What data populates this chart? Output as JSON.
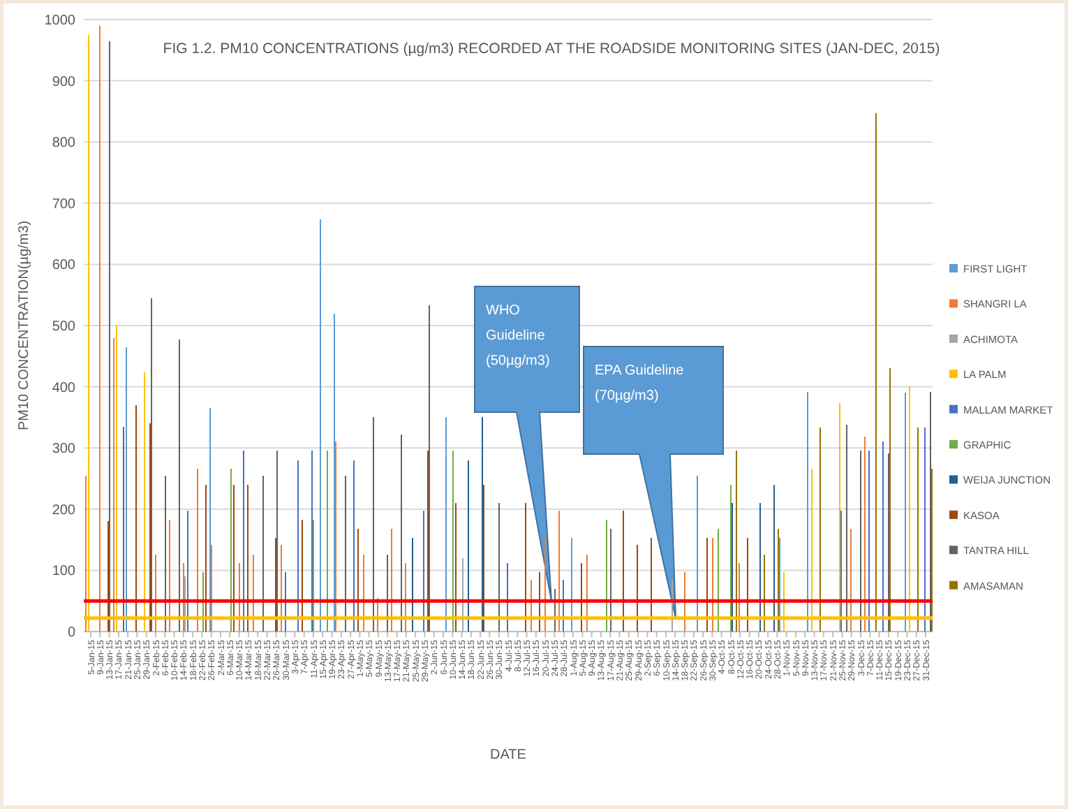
{
  "chart_data": {
    "type": "bar",
    "title": "FIG 1.2. PM10 CONCENTRATIONS  (µg/m3) RECORDED AT THE ROADSIDE MONITORING SITES (JAN-DEC, 2015)",
    "xlabel": "DATE",
    "ylabel": "PM10 CONCENTRATION(µg/m3)",
    "xlim": [
      "2015-01-02",
      "2016-01-03"
    ],
    "ylim": [
      0,
      1000
    ],
    "yticks": [
      0,
      100,
      200,
      300,
      400,
      500,
      600,
      700,
      800,
      900,
      1000
    ],
    "xticks": [
      {
        "value": "2015-01-05",
        "label": "5-Jan-15"
      },
      {
        "value": "2015-01-09",
        "label": "9-Jan-15"
      },
      {
        "value": "2015-01-13",
        "label": "13-Jan-15"
      },
      {
        "value": "2015-01-17",
        "label": "17-Jan-15"
      },
      {
        "value": "2015-01-21",
        "label": "21-Jan-15"
      },
      {
        "value": "2015-01-25",
        "label": "25-Jan-15"
      },
      {
        "value": "2015-01-29",
        "label": "29-Jan-15"
      },
      {
        "value": "2015-02-02",
        "label": "2-Feb-15"
      },
      {
        "value": "2015-02-06",
        "label": "6-Feb-15"
      },
      {
        "value": "2015-02-10",
        "label": "10-Feb-15"
      },
      {
        "value": "2015-02-14",
        "label": "14-Feb-15"
      },
      {
        "value": "2015-02-18",
        "label": "18-Feb-15"
      },
      {
        "value": "2015-02-22",
        "label": "22-Feb-15"
      },
      {
        "value": "2015-02-26",
        "label": "26-Feb-15"
      },
      {
        "value": "2015-03-02",
        "label": "2-Mar-15"
      },
      {
        "value": "2015-03-06",
        "label": "6-Mar-15"
      },
      {
        "value": "2015-03-10",
        "label": "10-Mar-15"
      },
      {
        "value": "2015-03-14",
        "label": "14-Mar-15"
      },
      {
        "value": "2015-03-18",
        "label": "18-Mar-15"
      },
      {
        "value": "2015-03-22",
        "label": "22-Mar-15"
      },
      {
        "value": "2015-03-26",
        "label": "26-Mar-15"
      },
      {
        "value": "2015-03-30",
        "label": "30-Mar-15"
      },
      {
        "value": "2015-04-03",
        "label": "3-Apr-15"
      },
      {
        "value": "2015-04-07",
        "label": "7-Apr-15"
      },
      {
        "value": "2015-04-11",
        "label": "11-Apr-15"
      },
      {
        "value": "2015-04-15",
        "label": "15-Apr-15"
      },
      {
        "value": "2015-04-19",
        "label": "19-Apr-15"
      },
      {
        "value": "2015-04-23",
        "label": "23-Apr-15"
      },
      {
        "value": "2015-04-27",
        "label": "27-Apr-15"
      },
      {
        "value": "2015-05-01",
        "label": "1-May-15"
      },
      {
        "value": "2015-05-05",
        "label": "5-May-15"
      },
      {
        "value": "2015-05-09",
        "label": "9-May-15"
      },
      {
        "value": "2015-05-13",
        "label": "13-May-15"
      },
      {
        "value": "2015-05-17",
        "label": "17-May-15"
      },
      {
        "value": "2015-05-21",
        "label": "21-May-15"
      },
      {
        "value": "2015-05-25",
        "label": "25-May-15"
      },
      {
        "value": "2015-05-29",
        "label": "29-May-15"
      },
      {
        "value": "2015-06-02",
        "label": "2-Jun-15"
      },
      {
        "value": "2015-06-06",
        "label": "6-Jun-15"
      },
      {
        "value": "2015-06-10",
        "label": "10-Jun-15"
      },
      {
        "value": "2015-06-14",
        "label": "14-Jun-15"
      },
      {
        "value": "2015-06-18",
        "label": "18-Jun-15"
      },
      {
        "value": "2015-06-22",
        "label": "22-Jun-15"
      },
      {
        "value": "2015-06-26",
        "label": "26-Jun-15"
      },
      {
        "value": "2015-06-30",
        "label": "30-Jun-15"
      },
      {
        "value": "2015-07-04",
        "label": "4-Jul-15"
      },
      {
        "value": "2015-07-08",
        "label": "8-Jul-15"
      },
      {
        "value": "2015-07-12",
        "label": "12-Jul-15"
      },
      {
        "value": "2015-07-16",
        "label": "16-Jul-15"
      },
      {
        "value": "2015-07-20",
        "label": "20-Jul-15"
      },
      {
        "value": "2015-07-24",
        "label": "24-Jul-15"
      },
      {
        "value": "2015-07-28",
        "label": "28-Jul-15"
      },
      {
        "value": "2015-08-01",
        "label": "1-Aug-15"
      },
      {
        "value": "2015-08-05",
        "label": "5-Aug-15"
      },
      {
        "value": "2015-08-09",
        "label": "9-Aug-15"
      },
      {
        "value": "2015-08-13",
        "label": "13-Aug-15"
      },
      {
        "value": "2015-08-17",
        "label": "17-Aug-15"
      },
      {
        "value": "2015-08-21",
        "label": "21-Aug-15"
      },
      {
        "value": "2015-08-25",
        "label": "25-Aug-15"
      },
      {
        "value": "2015-08-29",
        "label": "29-Aug-15"
      },
      {
        "value": "2015-09-02",
        "label": "2-Sep-15"
      },
      {
        "value": "2015-09-06",
        "label": "6-Sep-15"
      },
      {
        "value": "2015-09-10",
        "label": "10-Sep-15"
      },
      {
        "value": "2015-09-14",
        "label": "14-Sep-15"
      },
      {
        "value": "2015-09-18",
        "label": "18-Sep-15"
      },
      {
        "value": "2015-09-22",
        "label": "22-Sep-15"
      },
      {
        "value": "2015-09-26",
        "label": "26-Sep-15"
      },
      {
        "value": "2015-09-30",
        "label": "30-Sep-15"
      },
      {
        "value": "2015-10-04",
        "label": "4-Oct-15"
      },
      {
        "value": "2015-10-08",
        "label": "8-Oct-15"
      },
      {
        "value": "2015-10-12",
        "label": "12-Oct-15"
      },
      {
        "value": "2015-10-16",
        "label": "16-Oct-15"
      },
      {
        "value": "2015-10-20",
        "label": "20-Oct-15"
      },
      {
        "value": "2015-10-24",
        "label": "24-Oct-15"
      },
      {
        "value": "2015-10-28",
        "label": "28-Oct-15"
      },
      {
        "value": "2015-11-01",
        "label": "1-Nov-15"
      },
      {
        "value": "2015-11-05",
        "label": "5-Nov-15"
      },
      {
        "value": "2015-11-09",
        "label": "9-Nov-15"
      },
      {
        "value": "2015-11-13",
        "label": "13-Nov-15"
      },
      {
        "value": "2015-11-17",
        "label": "17-Nov-15"
      },
      {
        "value": "2015-11-21",
        "label": "21-Nov-15"
      },
      {
        "value": "2015-11-25",
        "label": "25-Nov-15"
      },
      {
        "value": "2015-11-29",
        "label": "29-Nov-15"
      },
      {
        "value": "2015-12-03",
        "label": "3-Dec-15"
      },
      {
        "value": "2015-12-07",
        "label": "7-Dec-15"
      },
      {
        "value": "2015-12-11",
        "label": "11-Dec-15"
      },
      {
        "value": "2015-12-15",
        "label": "15-Dec-15"
      },
      {
        "value": "2015-12-19",
        "label": "19-Dec-15"
      },
      {
        "value": "2015-12-23",
        "label": "23-Dec-15"
      },
      {
        "value": "2015-12-27",
        "label": "27-Dec-15"
      },
      {
        "value": "2015-12-31",
        "label": "31-Dec-15"
      }
    ],
    "grid": "y",
    "legend": "right",
    "ref_lines": [
      {
        "axis": "y",
        "value": 50,
        "color": "#ff0000"
      },
      {
        "axis": "y",
        "value": 22,
        "color": "#ffc000"
      }
    ],
    "annotations": [
      "WHO Guideline (50µg/m3)",
      "EPA Guideline (70µg/m3)"
    ],
    "series": [
      {
        "name": "FIRST LIGHT",
        "color": "#5b9bd5",
        "x": [
          "2015-01-23",
          "2015-02-28",
          "2015-04-17",
          "2015-04-23",
          "2015-06-10",
          "2015-08-03",
          "2015-09-26",
          "2015-11-01",
          "2015-11-13",
          "2015-12-25"
        ],
        "values": [
          465,
          365,
          673,
          519,
          351,
          153,
          254,
          153,
          392,
          390
        ]
      },
      {
        "name": "SHANGRI LA",
        "color": "#ed7d31",
        "x": [
          "2015-01-05",
          "2015-01-11",
          "2015-01-17",
          "2015-02-04",
          "2015-02-10",
          "2015-02-16",
          "2015-02-22",
          "2015-02-28",
          "2015-03-12",
          "2015-03-18",
          "2015-03-30",
          "2015-04-23",
          "2015-05-05",
          "2015-05-11",
          "2015-05-17",
          "2015-05-23",
          "2015-07-16",
          "2015-07-22",
          "2015-07-28",
          "2015-08-09",
          "2015-09-20",
          "2015-10-02",
          "2015-10-14",
          "2015-12-01",
          "2015-12-07"
        ],
        "values": [
          255,
          990,
          480,
          126,
          183,
          112,
          266,
          141,
          112,
          126,
          141,
          310,
          126,
          55,
          168,
          112,
          85,
          153,
          198,
          126,
          97,
          153,
          112,
          168,
          318
        ]
      },
      {
        "name": "ACHIMOTA",
        "color": "#a5a5a5",
        "x": [
          "2015-02-16",
          "2015-06-16",
          "2015-09-14"
        ],
        "values": [
          90,
          120,
          85
        ]
      },
      {
        "name": "LA PALM",
        "color": "#ffc000",
        "x": [
          "2015-01-05",
          "2015-01-17",
          "2015-01-29",
          "2015-11-01",
          "2015-11-13",
          "2015-11-25",
          "2015-12-25"
        ],
        "values": [
          975,
          500,
          424,
          97,
          266,
          373,
          401
        ]
      },
      {
        "name": "MALLAM MARKET",
        "color": "#4472c4",
        "x": [
          "2015-02-16",
          "2015-03-12",
          "2015-03-30",
          "2015-04-05",
          "2015-04-11",
          "2015-04-29",
          "2015-05-29",
          "2015-07-04",
          "2015-07-28",
          "2015-11-25",
          "2015-12-07",
          "2015-12-13",
          "2015-12-31"
        ],
        "values": [
          198,
          296,
          97,
          280,
          296,
          280,
          198,
          112,
          85,
          198,
          296,
          310,
          333
        ]
      },
      {
        "name": "GRAPHIC",
        "color": "#70ad47",
        "x": [
          "2015-02-22",
          "2015-03-06",
          "2015-04-11",
          "2015-04-17",
          "2015-06-10",
          "2015-08-15",
          "2015-10-02",
          "2015-10-08"
        ],
        "values": [
          97,
          266,
          183,
          296,
          296,
          183,
          168,
          240
        ]
      },
      {
        "name": "WEIJA JUNCTION",
        "color": "#255e91",
        "x": [
          "2015-05-23",
          "2015-06-16",
          "2015-06-22",
          "2015-10-08",
          "2015-10-20",
          "2015-10-26"
        ],
        "values": [
          153,
          280,
          351,
          210,
          210,
          240
        ]
      },
      {
        "name": "KASOA",
        "color": "#9e480e",
        "x": [
          "2015-01-11",
          "2015-01-23",
          "2015-01-29",
          "2015-02-22",
          "2015-03-06",
          "2015-03-12",
          "2015-03-24",
          "2015-04-05",
          "2015-04-29",
          "2015-05-29",
          "2015-06-10",
          "2015-06-22",
          "2015-07-10",
          "2015-07-16",
          "2015-08-03",
          "2015-08-21",
          "2015-08-27",
          "2015-09-02",
          "2015-09-26",
          "2015-10-14"
        ],
        "values": [
          180,
          370,
          340,
          240,
          240,
          240,
          153,
          183,
          168,
          296,
          210,
          240,
          210,
          97,
          112,
          198,
          141,
          153,
          153,
          153
        ]
      },
      {
        "name": "TANTRA HILL",
        "color": "#636363",
        "x": [
          "2015-01-11",
          "2015-01-17",
          "2015-01-29",
          "2015-02-04",
          "2015-02-10",
          "2015-03-18",
          "2015-03-24",
          "2015-04-23",
          "2015-05-05",
          "2015-05-11",
          "2015-05-17",
          "2015-05-29",
          "2015-06-28",
          "2015-07-22",
          "2015-08-15",
          "2015-11-25",
          "2015-12-01",
          "2015-12-13",
          "2015-12-31"
        ],
        "values": [
          965,
          335,
          545,
          254,
          477,
          254,
          296,
          254,
          351,
          126,
          322,
          533,
          210,
          70,
          168,
          338,
          296,
          291,
          392
        ]
      },
      {
        "name": "AMASAMAN",
        "color": "#997300",
        "x": [
          "2015-10-08",
          "2015-10-20",
          "2015-10-26",
          "2015-11-13",
          "2015-12-07",
          "2015-12-13",
          "2015-12-25",
          "2015-12-31"
        ],
        "values": [
          296,
          126,
          168,
          333,
          847,
          430,
          333,
          266
        ]
      }
    ]
  }
}
